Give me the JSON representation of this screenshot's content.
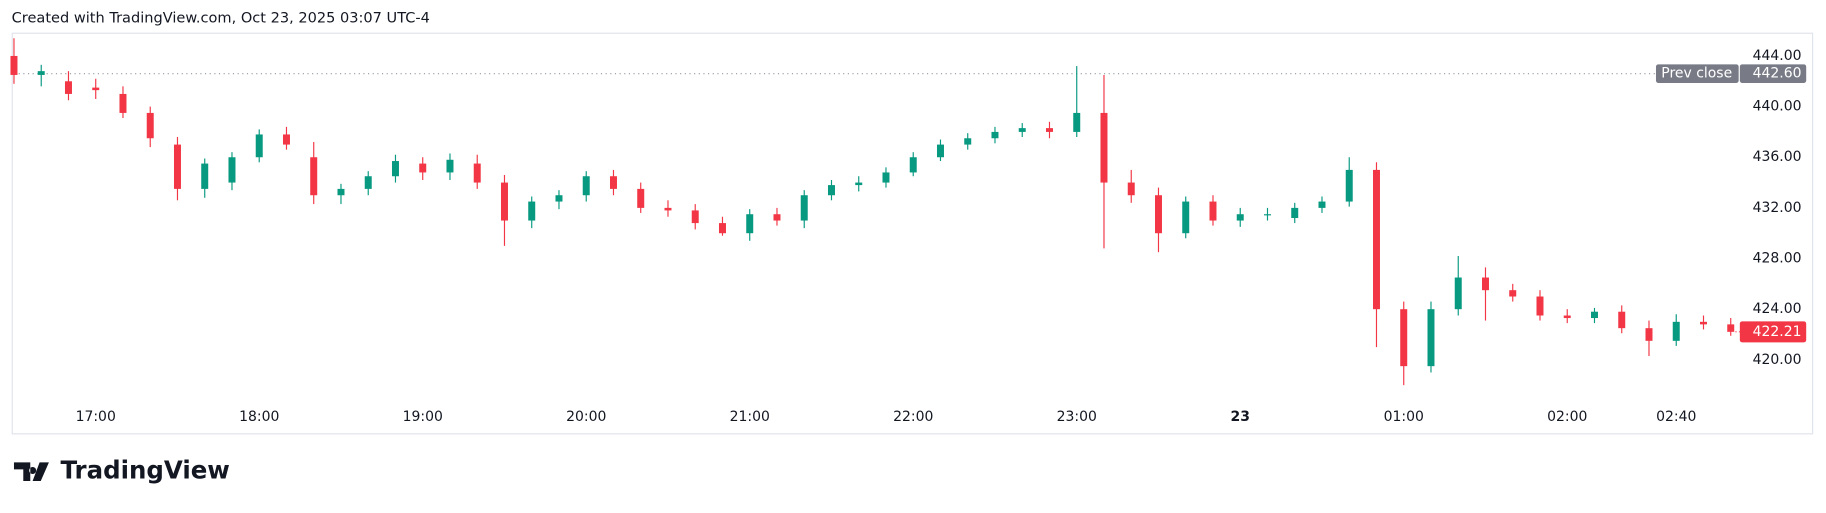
{
  "header": "Created with TradingView.com, Oct 23, 2025 03:07 UTC-4",
  "footer": {
    "brand": "TradingView"
  },
  "chart_data": {
    "type": "candlestick",
    "categories": [
      null,
      null,
      null,
      "17:00",
      null,
      null,
      null,
      null,
      null,
      "18:00",
      null,
      null,
      null,
      null,
      null,
      "19:00",
      null,
      null,
      null,
      null,
      null,
      "20:00",
      null,
      null,
      null,
      null,
      null,
      "21:00",
      null,
      null,
      null,
      null,
      null,
      "22:00",
      null,
      null,
      null,
      null,
      null,
      "23:00",
      null,
      null,
      null,
      null,
      null,
      "23",
      null,
      null,
      null,
      null,
      null,
      "01:00",
      null,
      null,
      null,
      null,
      null,
      "02:00",
      null,
      null,
      null,
      "02:40",
      null,
      null
    ],
    "open": [
      444,
      442.5,
      442,
      441.5,
      441,
      439.5,
      437,
      433.5,
      434,
      436,
      437.8,
      436,
      433,
      433.5,
      434.5,
      435.5,
      434.8,
      435.5,
      434,
      431,
      432.5,
      433,
      434.5,
      433.5,
      432,
      431.8,
      430.8,
      430,
      431.5,
      431,
      433,
      433.8,
      434,
      434.8,
      436,
      437,
      437.5,
      438,
      438.3,
      438,
      439.5,
      434,
      433,
      430,
      432.5,
      431,
      431.5,
      431.2,
      432,
      432.5,
      435,
      424,
      419.5,
      424,
      426.5,
      425.5,
      425,
      423.5,
      423.3,
      423.8,
      422.5,
      421.5,
      423,
      422.8
    ],
    "high": [
      445.4,
      443.3,
      442.8,
      442.2,
      441.6,
      440,
      437.6,
      435.9,
      436.4,
      438.2,
      438.4,
      437.2,
      433.9,
      434.9,
      436.2,
      436,
      436.3,
      436.2,
      434.6,
      432.9,
      433.4,
      434.9,
      435,
      434,
      432.6,
      432.3,
      431.3,
      431.9,
      432,
      433.4,
      434.2,
      434.5,
      435.2,
      436.4,
      437.4,
      437.9,
      438.4,
      438.7,
      438.8,
      443.2,
      442.5,
      435,
      433.6,
      432.9,
      433,
      432,
      432,
      432.4,
      432.9,
      436,
      435.6,
      424.6,
      424.6,
      428.2,
      427.3,
      426,
      425.5,
      424,
      424.1,
      424.3,
      423.1,
      423.6,
      423.5,
      423.3
    ],
    "low": [
      441.8,
      441.6,
      440.5,
      440.6,
      439.1,
      436.8,
      432.6,
      432.8,
      433.4,
      435.6,
      436.6,
      432.3,
      432.3,
      433,
      434,
      434.2,
      434.2,
      433.5,
      429,
      430.4,
      431.9,
      432.5,
      433,
      431.6,
      431.3,
      430.3,
      429.8,
      429.4,
      430.6,
      430.4,
      432.6,
      433.3,
      433.6,
      434.5,
      435.7,
      436.6,
      437.1,
      437.6,
      437.5,
      437.6,
      428.8,
      432.4,
      428.5,
      429.6,
      430.6,
      430.5,
      431,
      430.8,
      431.6,
      432.1,
      421,
      418,
      419,
      423.5,
      423.1,
      424.6,
      423.1,
      422.9,
      422.9,
      422.1,
      420.3,
      421.1,
      422.4,
      421.9
    ],
    "close": [
      442.5,
      442.8,
      441,
      441.3,
      439.5,
      437.5,
      433.5,
      435.5,
      436,
      437.8,
      437,
      433,
      433.5,
      434.5,
      435.7,
      434.8,
      435.8,
      434,
      431,
      432.5,
      433,
      434.5,
      433.5,
      432,
      431.8,
      430.8,
      430,
      431.5,
      431,
      433,
      433.8,
      434,
      434.8,
      436,
      437,
      437.5,
      438,
      438.3,
      438,
      439.5,
      434,
      433,
      430,
      432.5,
      431,
      431.5,
      431.5,
      432,
      432.5,
      435,
      424,
      419.5,
      424,
      426.5,
      425.5,
      425,
      423.5,
      423.3,
      423.8,
      422.5,
      421.5,
      423,
      422.8,
      422.21
    ],
    "up_color": "#089981",
    "down_color": "#f23645",
    "ylim": [
      414.2,
      445.84
    ],
    "yticks": [
      {
        "value": 420,
        "label": "420.00"
      },
      {
        "value": 424,
        "label": "424.00"
      },
      {
        "value": 428,
        "label": "428.00"
      },
      {
        "value": 432,
        "label": "432.00"
      },
      {
        "value": 436,
        "label": "436.00"
      },
      {
        "value": 440,
        "label": "440.00"
      },
      {
        "value": 444,
        "label": "444.00"
      }
    ],
    "prev_close": {
      "value": 442.6,
      "label": "442.60"
    },
    "prev_close_text": "Prev close"
  }
}
